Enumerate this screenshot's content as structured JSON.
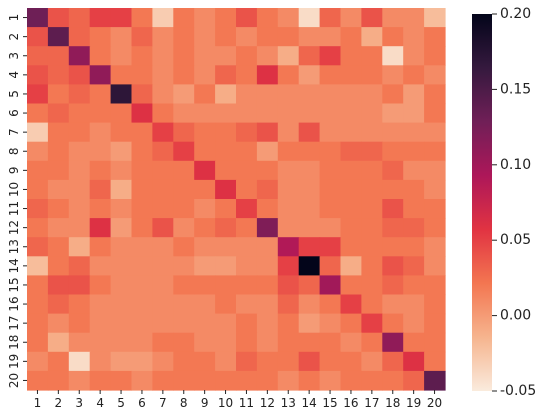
{
  "chart_data": {
    "type": "heatmap",
    "title": "",
    "xlabel": "",
    "ylabel": "",
    "x_labels": [
      "1",
      "2",
      "3",
      "4",
      "5",
      "6",
      "7",
      "8",
      "9",
      "10",
      "11",
      "12",
      "13",
      "14",
      "15",
      "16",
      "17",
      "18",
      "19",
      "20"
    ],
    "y_labels": [
      "1",
      "2",
      "3",
      "4",
      "5",
      "6",
      "7",
      "8",
      "9",
      "10",
      "11",
      "12",
      "13",
      "14",
      "15",
      "16",
      "17",
      "18",
      "19",
      "20"
    ],
    "values": [
      [
        0.13,
        0.04,
        0.03,
        0.05,
        0.05,
        0.02,
        -0.03,
        0.02,
        0.01,
        0.02,
        0.04,
        0.02,
        0.01,
        -0.04,
        0.03,
        0.01,
        0.04,
        0.01,
        0.01,
        -0.02
      ],
      [
        0.04,
        0.14,
        0.03,
        0.02,
        0.01,
        0.03,
        0.01,
        0.02,
        0.01,
        0.02,
        0.01,
        0.02,
        0.02,
        0.01,
        0.01,
        0.02,
        -0.01,
        0.02,
        0.01,
        0.02
      ],
      [
        0.03,
        0.03,
        0.11,
        0.02,
        0.01,
        0.02,
        0.01,
        0.02,
        0.01,
        0.01,
        0.02,
        0.01,
        -0.01,
        0.03,
        0.05,
        0.02,
        0.02,
        -0.04,
        0.01,
        0.02
      ],
      [
        0.04,
        0.03,
        0.04,
        0.11,
        0.02,
        0.02,
        0.01,
        0.02,
        0.01,
        0.03,
        0.02,
        0.06,
        0.02,
        0.0,
        0.02,
        0.02,
        0.02,
        0.01,
        0.02,
        0.01
      ],
      [
        0.05,
        0.02,
        0.03,
        0.02,
        0.17,
        0.03,
        0.01,
        0.0,
        0.02,
        -0.01,
        0.01,
        0.01,
        0.01,
        0.01,
        0.01,
        0.01,
        0.01,
        0.02,
        0.0,
        0.02
      ],
      [
        0.02,
        0.03,
        0.02,
        0.02,
        0.02,
        0.06,
        0.02,
        0.01,
        0.01,
        0.01,
        0.01,
        0.01,
        0.01,
        0.01,
        0.01,
        0.01,
        0.01,
        0.0,
        0.0,
        0.02
      ],
      [
        -0.03,
        0.02,
        0.02,
        0.01,
        0.02,
        0.02,
        0.05,
        0.03,
        0.02,
        0.02,
        0.03,
        0.04,
        0.01,
        0.04,
        0.01,
        0.01,
        0.01,
        0.01,
        0.01,
        0.01
      ],
      [
        0.01,
        0.02,
        0.01,
        0.01,
        0.0,
        0.02,
        0.03,
        0.05,
        0.02,
        0.02,
        0.02,
        0.0,
        0.02,
        0.02,
        0.02,
        0.03,
        0.03,
        0.02,
        0.02,
        0.02
      ],
      [
        0.02,
        0.02,
        0.01,
        0.02,
        0.01,
        0.02,
        0.02,
        0.02,
        0.06,
        0.02,
        0.02,
        0.02,
        0.01,
        0.01,
        0.02,
        0.02,
        0.02,
        0.03,
        0.01,
        0.01
      ],
      [
        0.02,
        0.01,
        0.01,
        0.03,
        -0.01,
        0.02,
        0.02,
        0.02,
        0.02,
        0.06,
        0.02,
        0.03,
        0.01,
        0.01,
        0.02,
        0.02,
        0.02,
        0.02,
        0.02,
        0.01
      ],
      [
        0.03,
        0.02,
        0.01,
        0.02,
        0.01,
        0.02,
        0.02,
        0.02,
        0.01,
        0.02,
        0.05,
        0.02,
        0.01,
        0.01,
        0.02,
        0.02,
        0.02,
        0.04,
        0.02,
        0.02
      ],
      [
        0.02,
        0.01,
        0.01,
        0.06,
        0.0,
        0.02,
        0.04,
        0.01,
        0.02,
        0.03,
        0.02,
        0.12,
        0.01,
        0.01,
        0.01,
        0.02,
        0.02,
        0.03,
        0.03,
        0.02
      ],
      [
        0.03,
        0.02,
        -0.01,
        0.02,
        0.01,
        0.01,
        0.01,
        0.02,
        0.01,
        0.01,
        0.01,
        0.01,
        0.09,
        0.05,
        0.05,
        0.02,
        0.02,
        0.02,
        0.02,
        0.01
      ],
      [
        -0.02,
        0.02,
        0.03,
        0.01,
        0.01,
        0.01,
        0.01,
        0.01,
        0.0,
        0.0,
        0.01,
        0.01,
        0.05,
        0.2,
        0.03,
        -0.01,
        0.02,
        0.04,
        0.03,
        0.01
      ],
      [
        0.02,
        0.04,
        0.04,
        0.02,
        0.01,
        0.01,
        0.01,
        0.02,
        0.02,
        0.02,
        0.02,
        0.02,
        0.04,
        0.03,
        0.1,
        0.02,
        0.02,
        0.03,
        0.02,
        0.02
      ],
      [
        0.02,
        0.03,
        0.02,
        0.01,
        0.01,
        0.01,
        0.01,
        0.01,
        0.01,
        0.02,
        0.01,
        0.01,
        0.03,
        0.01,
        0.02,
        0.05,
        0.02,
        0.01,
        0.01,
        0.02
      ],
      [
        0.02,
        0.01,
        0.02,
        0.01,
        0.01,
        0.01,
        0.01,
        0.01,
        0.01,
        0.01,
        0.02,
        0.01,
        0.02,
        0.0,
        0.01,
        0.02,
        0.05,
        0.02,
        0.01,
        0.02
      ],
      [
        0.02,
        -0.01,
        0.01,
        0.01,
        0.01,
        0.01,
        0.02,
        0.02,
        0.01,
        0.01,
        0.02,
        0.01,
        0.02,
        0.02,
        0.02,
        0.01,
        0.02,
        0.11,
        0.02,
        0.02
      ],
      [
        0.01,
        0.02,
        -0.04,
        0.01,
        0.0,
        0.0,
        0.01,
        0.02,
        0.02,
        0.01,
        0.03,
        0.02,
        0.02,
        0.04,
        0.02,
        0.02,
        0.01,
        0.03,
        0.06,
        0.02
      ],
      [
        0.02,
        0.02,
        0.01,
        0.02,
        0.02,
        0.01,
        0.02,
        0.02,
        0.02,
        0.02,
        0.02,
        0.02,
        0.01,
        0.02,
        0.01,
        0.02,
        0.02,
        0.02,
        0.03,
        0.14
      ]
    ],
    "vmin": -0.05,
    "vmax": 0.2,
    "colorbar_ticks": [
      "0.20",
      "0.15",
      "0.10",
      "0.05",
      "0.00",
      "-0.05"
    ],
    "colormap": "rocket_r",
    "color_stops": [
      "#faebdd",
      "#f6b48e",
      "#f37651",
      "#e13342",
      "#ad1759",
      "#701f57",
      "#35193e",
      "#03051a"
    ],
    "grid": false,
    "legend": "colorbar-right"
  }
}
